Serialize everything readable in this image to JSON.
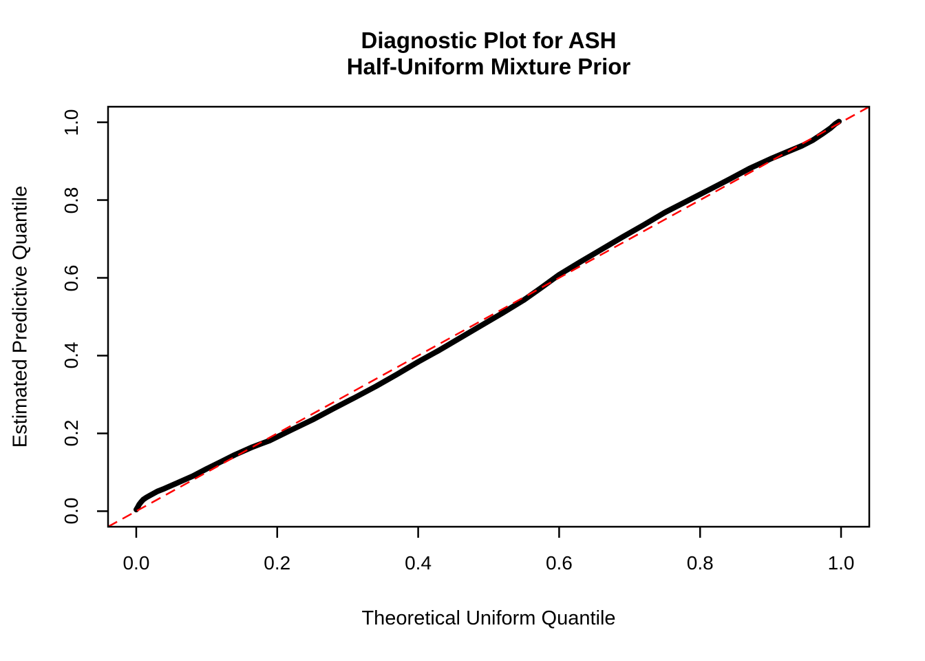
{
  "title": {
    "line1": "Diagnostic Plot for ASH",
    "line2": "Half-Uniform Mixture Prior"
  },
  "axes": {
    "xlabel": "Theoretical Uniform Quantile",
    "ylabel": "Estimated Predictive Quantile",
    "x_tick_labels": [
      "0.0",
      "0.2",
      "0.4",
      "0.6",
      "0.8",
      "1.0"
    ],
    "y_tick_labels": [
      "0.0",
      "0.2",
      "0.4",
      "0.6",
      "0.8",
      "1.0"
    ]
  },
  "colors": {
    "curve": "#000000",
    "reference_line": "#FF0000",
    "axis": "#000000",
    "background": "#FFFFFF"
  },
  "chart_data": {
    "type": "scatter",
    "title": "Diagnostic Plot for ASH Half-Uniform Mixture Prior",
    "xlabel": "Theoretical Uniform Quantile",
    "ylabel": "Estimated Predictive Quantile",
    "xlim": [
      -0.04,
      1.04
    ],
    "ylim": [
      -0.04,
      1.04
    ],
    "x_ticks": [
      0.0,
      0.2,
      0.4,
      0.6,
      0.8,
      1.0
    ],
    "y_ticks": [
      0.0,
      0.2,
      0.4,
      0.6,
      0.8,
      1.0
    ],
    "grid": false,
    "legend": false,
    "series": [
      {
        "name": "estimated-vs-theoretical-quantile-curve",
        "style": "thick-point-curve",
        "color": "#000000",
        "points": [
          [
            0.0,
            0.004
          ],
          [
            0.002,
            0.01
          ],
          [
            0.004,
            0.017
          ],
          [
            0.007,
            0.024
          ],
          [
            0.01,
            0.03
          ],
          [
            0.015,
            0.036
          ],
          [
            0.02,
            0.041
          ],
          [
            0.03,
            0.051
          ],
          [
            0.04,
            0.058
          ],
          [
            0.06,
            0.074
          ],
          [
            0.08,
            0.09
          ],
          [
            0.1,
            0.109
          ],
          [
            0.12,
            0.127
          ],
          [
            0.14,
            0.145
          ],
          [
            0.165,
            0.165
          ],
          [
            0.19,
            0.182
          ],
          [
            0.22,
            0.209
          ],
          [
            0.25,
            0.235
          ],
          [
            0.28,
            0.264
          ],
          [
            0.31,
            0.292
          ],
          [
            0.34,
            0.321
          ],
          [
            0.37,
            0.352
          ],
          [
            0.4,
            0.384
          ],
          [
            0.43,
            0.414
          ],
          [
            0.46,
            0.446
          ],
          [
            0.49,
            0.478
          ],
          [
            0.52,
            0.51
          ],
          [
            0.55,
            0.543
          ],
          [
            0.575,
            0.575
          ],
          [
            0.6,
            0.608
          ],
          [
            0.63,
            0.641
          ],
          [
            0.66,
            0.673
          ],
          [
            0.69,
            0.705
          ],
          [
            0.72,
            0.736
          ],
          [
            0.75,
            0.768
          ],
          [
            0.78,
            0.796
          ],
          [
            0.81,
            0.824
          ],
          [
            0.84,
            0.852
          ],
          [
            0.87,
            0.881
          ],
          [
            0.9,
            0.906
          ],
          [
            0.925,
            0.925
          ],
          [
            0.945,
            0.94
          ],
          [
            0.96,
            0.954
          ],
          [
            0.975,
            0.972
          ],
          [
            0.985,
            0.985
          ],
          [
            0.992,
            0.996
          ],
          [
            0.997,
            1.002
          ]
        ]
      },
      {
        "name": "reference-diagonal",
        "style": "dashed-line",
        "color": "#FF0000",
        "points": [
          [
            -0.04,
            -0.04
          ],
          [
            1.04,
            1.04
          ]
        ]
      }
    ]
  }
}
